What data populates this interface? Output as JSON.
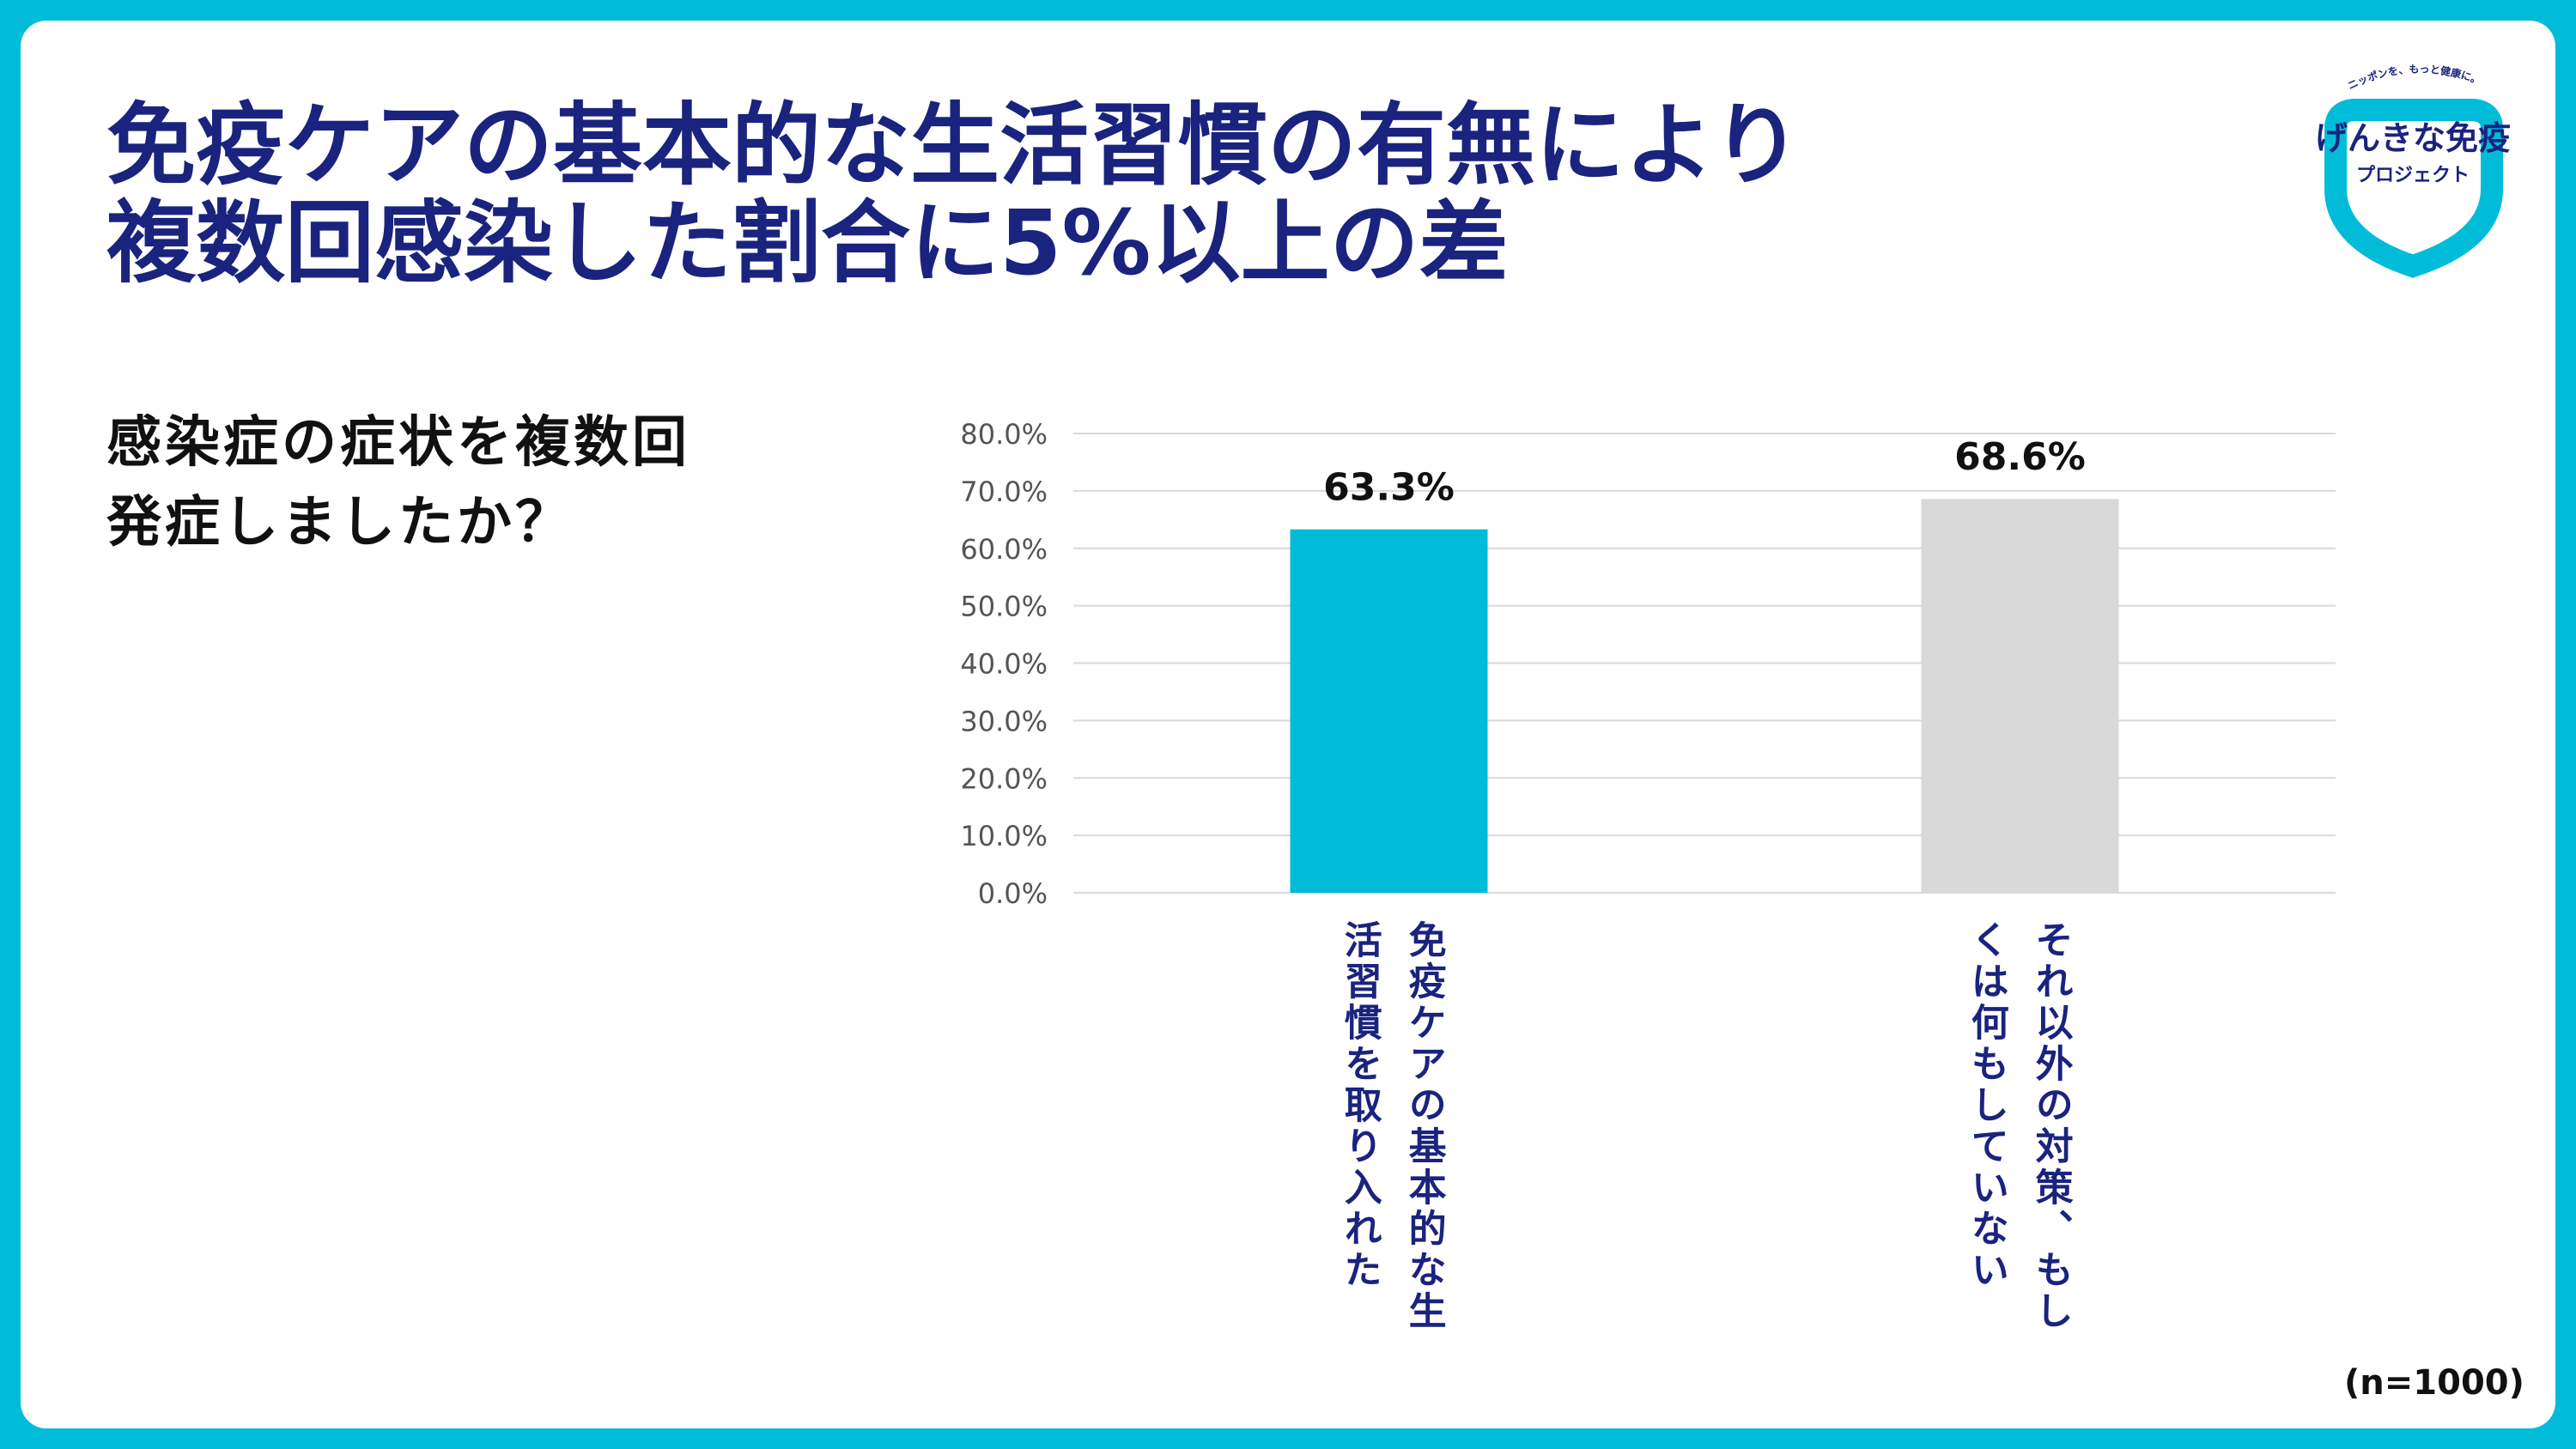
{
  "title": {
    "line1": "免疫ケアの基本的な生活習慣の有無により",
    "line2": "複数回感染した割合に5%以上の差"
  },
  "question": {
    "line1": "感染症の症状を複数回",
    "line2": "発症しましたか？"
  },
  "logo": {
    "tagline": "ニッポンを、もっと健康に。",
    "name": "げんきな免疫",
    "sub": "プロジェクト",
    "ring_color": "#00bcd9"
  },
  "sample_note": "(n=1000)",
  "colors": {
    "frame": "#00bcd9",
    "title": "#1a237e",
    "bar1": "#00bcd9",
    "bar2": "#d9d9d9",
    "grid": "#d9d9d9"
  },
  "chart_data": {
    "type": "bar",
    "categories": [
      "免疫ケアの基本的な生活習慣を取り入れた",
      "それ以外の対策、もしくは何もしていない"
    ],
    "values": [
      63.3,
      68.6
    ],
    "value_labels": [
      "63.3%",
      "68.6%"
    ],
    "bar_colors": [
      "#00bcd9",
      "#d9d9d9"
    ],
    "ylim": [
      0,
      80
    ],
    "yticks": [
      "0.0%",
      "10.0%",
      "20.0%",
      "30.0%",
      "40.0%",
      "50.0%",
      "60.0%",
      "70.0%",
      "80.0%"
    ],
    "grid": true,
    "legend": "none"
  }
}
